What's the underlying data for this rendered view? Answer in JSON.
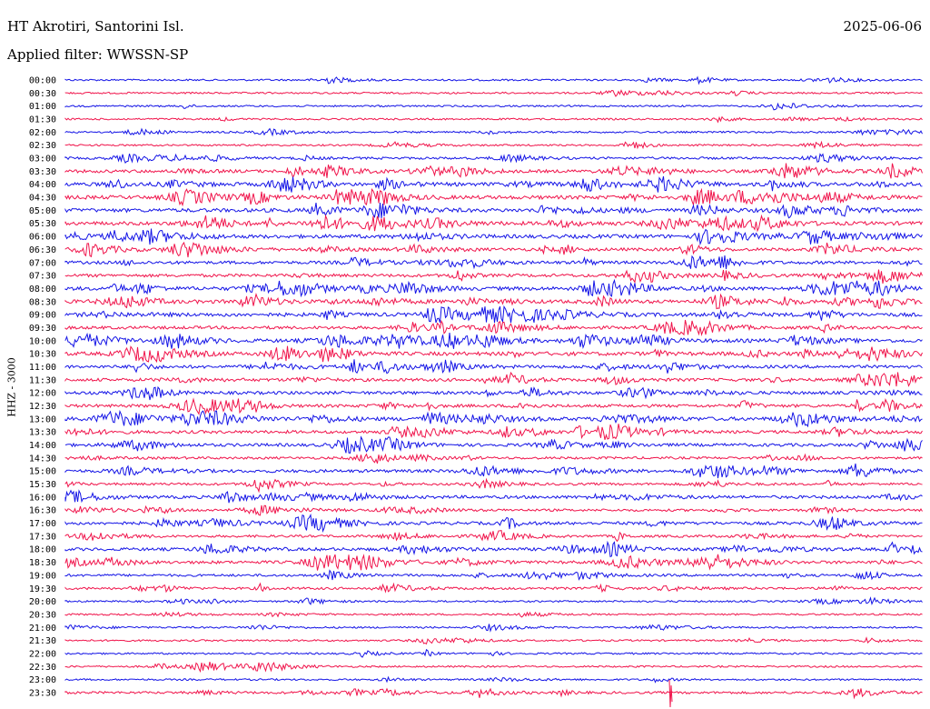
{
  "header": {
    "station": "HT Akrotiri, Santorini Isl.",
    "date": "2025-06-06",
    "filter": "Applied filter: WWSSN-SP"
  },
  "channel_label": "HHZ - 3000",
  "colors": {
    "even": "#1414e6",
    "odd": "#f0144b"
  },
  "chart_data": {
    "type": "line",
    "title": "",
    "ylabel": "HHZ - 3000",
    "rows": [
      {
        "label": "00:00",
        "activity": 1
      },
      {
        "label": "00:30",
        "activity": 1
      },
      {
        "label": "01:00",
        "activity": 1
      },
      {
        "label": "01:30",
        "activity": 1
      },
      {
        "label": "02:00",
        "activity": 1
      },
      {
        "label": "02:30",
        "activity": 1
      },
      {
        "label": "03:00",
        "activity": 2
      },
      {
        "label": "03:30",
        "activity": 3
      },
      {
        "label": "04:00",
        "activity": 4
      },
      {
        "label": "04:30",
        "activity": 4
      },
      {
        "label": "05:00",
        "activity": 4
      },
      {
        "label": "05:30",
        "activity": 4
      },
      {
        "label": "06:00",
        "activity": 4
      },
      {
        "label": "06:30",
        "activity": 3
      },
      {
        "label": "07:00",
        "activity": 3
      },
      {
        "label": "07:30",
        "activity": 3
      },
      {
        "label": "08:00",
        "activity": 4
      },
      {
        "label": "08:30",
        "activity": 4
      },
      {
        "label": "09:00",
        "activity": 4
      },
      {
        "label": "09:30",
        "activity": 3
      },
      {
        "label": "10:00",
        "activity": 4
      },
      {
        "label": "10:30",
        "activity": 4
      },
      {
        "label": "11:00",
        "activity": 3
      },
      {
        "label": "11:30",
        "activity": 3
      },
      {
        "label": "12:00",
        "activity": 3
      },
      {
        "label": "12:30",
        "activity": 3
      },
      {
        "label": "13:00",
        "activity": 4
      },
      {
        "label": "13:30",
        "activity": 3
      },
      {
        "label": "14:00",
        "activity": 3
      },
      {
        "label": "14:30",
        "activity": 2
      },
      {
        "label": "15:00",
        "activity": 3
      },
      {
        "label": "15:30",
        "activity": 2
      },
      {
        "label": "16:00",
        "activity": 3
      },
      {
        "label": "16:30",
        "activity": 2
      },
      {
        "label": "17:00",
        "activity": 3
      },
      {
        "label": "17:30",
        "activity": 2
      },
      {
        "label": "18:00",
        "activity": 3
      },
      {
        "label": "18:30",
        "activity": 3
      },
      {
        "label": "19:00",
        "activity": 2
      },
      {
        "label": "19:30",
        "activity": 2
      },
      {
        "label": "20:00",
        "activity": 1
      },
      {
        "label": "20:30",
        "activity": 1
      },
      {
        "label": "21:00",
        "activity": 1
      },
      {
        "label": "21:30",
        "activity": 1
      },
      {
        "label": "22:00",
        "activity": 1
      },
      {
        "label": "22:30",
        "activity": 1
      },
      {
        "label": "23:00",
        "activity": 1
      },
      {
        "label": "23:30",
        "activity": 2
      }
    ]
  }
}
